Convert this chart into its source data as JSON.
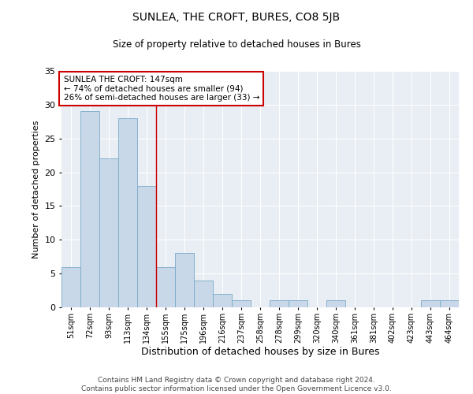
{
  "title1": "SUNLEA, THE CROFT, BURES, CO8 5JB",
  "title2": "Size of property relative to detached houses in Bures",
  "xlabel": "Distribution of detached houses by size in Bures",
  "ylabel": "Number of detached properties",
  "categories": [
    "51sqm",
    "72sqm",
    "93sqm",
    "113sqm",
    "134sqm",
    "155sqm",
    "175sqm",
    "196sqm",
    "216sqm",
    "237sqm",
    "258sqm",
    "278sqm",
    "299sqm",
    "320sqm",
    "340sqm",
    "361sqm",
    "381sqm",
    "402sqm",
    "423sqm",
    "443sqm",
    "464sqm"
  ],
  "values": [
    6,
    29,
    22,
    28,
    18,
    6,
    8,
    4,
    2,
    1,
    0,
    1,
    1,
    0,
    1,
    0,
    0,
    0,
    0,
    1,
    1
  ],
  "bar_color": "#c8d8e8",
  "bar_edge_color": "#7aaac8",
  "marker_color": "#cc0000",
  "annotation_title": "SUNLEA THE CROFT: 147sqm",
  "annotation_line1": "← 74% of detached houses are smaller (94)",
  "annotation_line2": "26% of semi-detached houses are larger (33) →",
  "annotation_box_edge": "#cc0000",
  "ylim": [
    0,
    35
  ],
  "yticks": [
    0,
    5,
    10,
    15,
    20,
    25,
    30,
    35
  ],
  "footer1": "Contains HM Land Registry data © Crown copyright and database right 2024.",
  "footer2": "Contains public sector information licensed under the Open Government Licence v3.0.",
  "bg_color": "#e8eef4"
}
